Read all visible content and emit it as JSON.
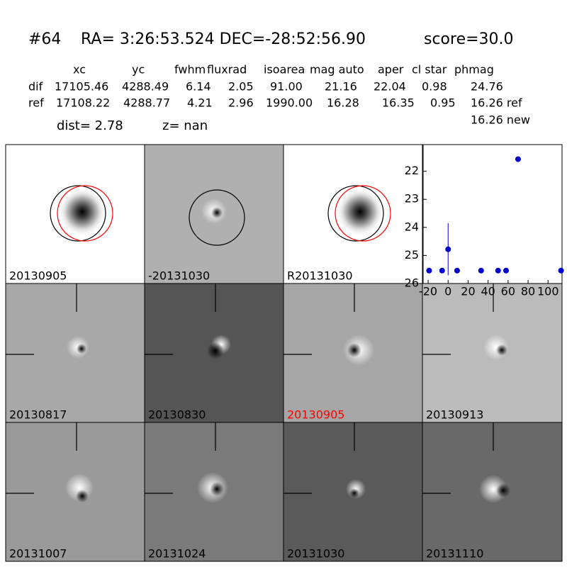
{
  "header": {
    "id": "#64",
    "coords": "RA= 3:26:53.524 DEC=-28:52:56.90",
    "score": "score=30.0"
  },
  "table": {
    "columns": [
      "xc",
      "yc",
      "fwhm",
      "fluxrad",
      "isoarea",
      "mag auto",
      "aper",
      "cl star",
      "phmag"
    ],
    "rows": [
      [
        "dif",
        "17105.46",
        "4288.49",
        "6.14",
        "2.05",
        "91.00",
        "21.16",
        "22.04",
        "0.98",
        "24.76"
      ],
      [
        "ref",
        "17108.22",
        "4288.77",
        "4.21",
        "2.96",
        "1990.00",
        "16.28",
        "16.35",
        "0.95",
        "16.26 ref"
      ]
    ],
    "extra": "16.26 new"
  },
  "dist": "dist=  2.78",
  "z": "z=   nan",
  "stamps": {
    "labels": [
      "20130905",
      "-20131030",
      "R20131030",
      "20130817",
      "20130830",
      "20130905",
      "20130913",
      "20131007",
      "20131024",
      "20131030",
      "20131110"
    ],
    "highlight_index": 5,
    "highlight_color": "#ff0000"
  },
  "chart_data": {
    "type": "scatter",
    "x": [
      -19,
      -6,
      0,
      9,
      33,
      50,
      58,
      70,
      113
    ],
    "values": [
      25.54,
      25.54,
      24.78,
      25.54,
      25.54,
      25.54,
      25.54,
      21.57,
      25.54
    ],
    "errors": [
      null,
      null,
      0.93,
      null,
      null,
      null,
      null,
      null,
      null
    ],
    "color": "#0000cc",
    "xlim": [
      -25,
      114
    ],
    "ylim": [
      26,
      21.05
    ],
    "xticks": [
      -20,
      0,
      20,
      40,
      60,
      80,
      100
    ],
    "yticks": [
      22,
      23,
      24,
      25,
      26
    ]
  }
}
